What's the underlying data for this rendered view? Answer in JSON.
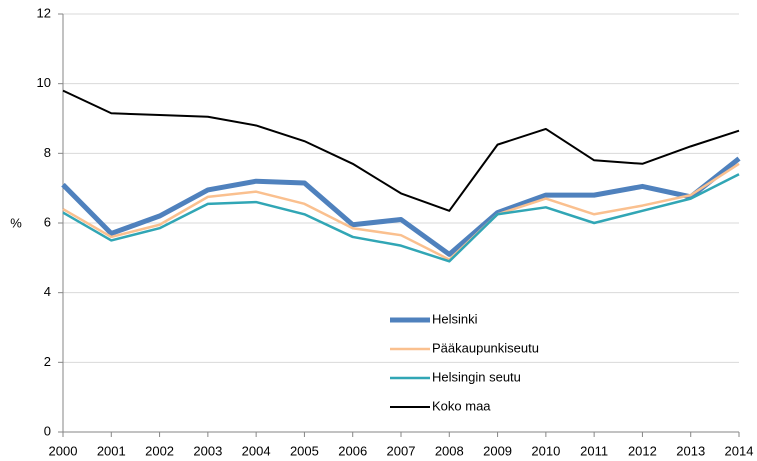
{
  "chart_data": {
    "type": "line",
    "y_label": "%",
    "x": [
      2000,
      2001,
      2002,
      2003,
      2004,
      2005,
      2006,
      2007,
      2008,
      2009,
      2010,
      2011,
      2012,
      2013,
      2014
    ],
    "xlim": [
      2000,
      2014
    ],
    "xticks": [
      2000,
      2001,
      2002,
      2003,
      2004,
      2005,
      2006,
      2007,
      2008,
      2009,
      2010,
      2011,
      2012,
      2013,
      2014
    ],
    "ylim": [
      0,
      12
    ],
    "yticks": [
      0,
      2,
      4,
      6,
      8,
      10,
      12
    ],
    "grid": true,
    "legend": "center",
    "series": [
      {
        "name": "Helsinki",
        "color": "#4f81bd",
        "line_width": 5,
        "values": [
          7.1,
          5.7,
          6.2,
          6.95,
          7.2,
          7.15,
          5.95,
          6.1,
          5.1,
          6.3,
          6.8,
          6.8,
          7.05,
          6.75,
          7.85
        ]
      },
      {
        "name": "Pääkaupunkiseutu",
        "color": "#fac08f",
        "line_width": 2.5,
        "values": [
          6.4,
          5.6,
          5.95,
          6.75,
          6.9,
          6.55,
          5.85,
          5.65,
          4.95,
          6.25,
          6.7,
          6.25,
          6.5,
          6.8,
          7.7
        ]
      },
      {
        "name": "Helsingin seutu",
        "color": "#31a6b5",
        "line_width": 2.5,
        "values": [
          6.3,
          5.5,
          5.85,
          6.55,
          6.6,
          6.25,
          5.6,
          5.35,
          4.9,
          6.25,
          6.45,
          6.0,
          6.35,
          6.7,
          7.4
        ]
      },
      {
        "name": "Koko maa",
        "color": "#000000",
        "line_width": 2,
        "values": [
          9.8,
          9.15,
          9.1,
          9.05,
          8.8,
          8.35,
          7.7,
          6.85,
          6.35,
          8.25,
          8.7,
          7.8,
          7.7,
          8.2,
          8.65
        ]
      }
    ]
  }
}
